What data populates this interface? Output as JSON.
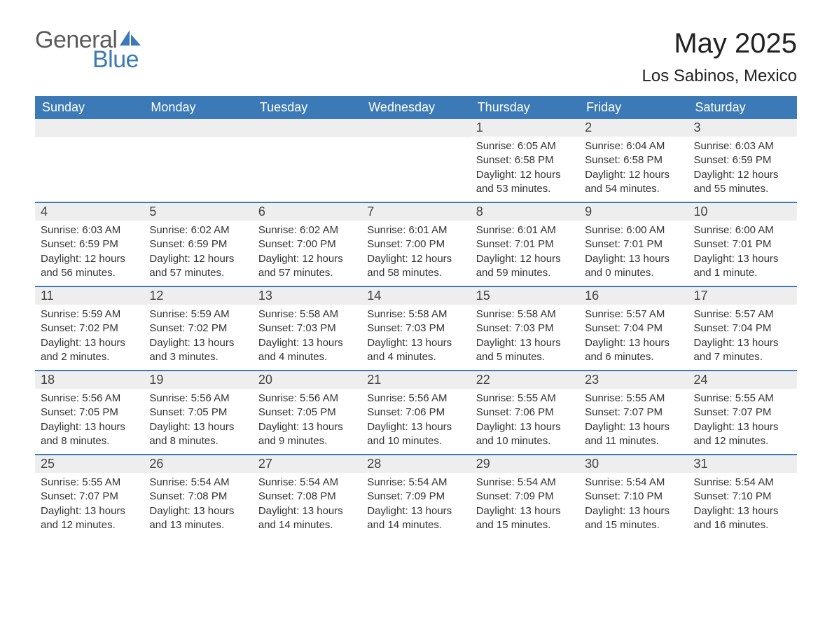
{
  "brand": {
    "word1": "General",
    "word2": "Blue",
    "word1_color": "#5a5a5a",
    "word2_color": "#3b79b7",
    "icon_color": "#3b79b7"
  },
  "header": {
    "month_title": "May 2025",
    "location": "Los Sabinos, Mexico"
  },
  "colors": {
    "header_bg": "#3b79b7",
    "header_text": "#ffffff",
    "daynum_bg": "#eeeeee",
    "week_border": "#3b79b7",
    "body_text": "#333333",
    "page_bg": "#ffffff"
  },
  "dow": [
    "Sunday",
    "Monday",
    "Tuesday",
    "Wednesday",
    "Thursday",
    "Friday",
    "Saturday"
  ],
  "weeks": [
    [
      null,
      null,
      null,
      null,
      {
        "n": "1",
        "sr": "Sunrise: 6:05 AM",
        "ss": "Sunset: 6:58 PM",
        "dl": "Daylight: 12 hours and 53 minutes."
      },
      {
        "n": "2",
        "sr": "Sunrise: 6:04 AM",
        "ss": "Sunset: 6:58 PM",
        "dl": "Daylight: 12 hours and 54 minutes."
      },
      {
        "n": "3",
        "sr": "Sunrise: 6:03 AM",
        "ss": "Sunset: 6:59 PM",
        "dl": "Daylight: 12 hours and 55 minutes."
      }
    ],
    [
      {
        "n": "4",
        "sr": "Sunrise: 6:03 AM",
        "ss": "Sunset: 6:59 PM",
        "dl": "Daylight: 12 hours and 56 minutes."
      },
      {
        "n": "5",
        "sr": "Sunrise: 6:02 AM",
        "ss": "Sunset: 6:59 PM",
        "dl": "Daylight: 12 hours and 57 minutes."
      },
      {
        "n": "6",
        "sr": "Sunrise: 6:02 AM",
        "ss": "Sunset: 7:00 PM",
        "dl": "Daylight: 12 hours and 57 minutes."
      },
      {
        "n": "7",
        "sr": "Sunrise: 6:01 AM",
        "ss": "Sunset: 7:00 PM",
        "dl": "Daylight: 12 hours and 58 minutes."
      },
      {
        "n": "8",
        "sr": "Sunrise: 6:01 AM",
        "ss": "Sunset: 7:01 PM",
        "dl": "Daylight: 12 hours and 59 minutes."
      },
      {
        "n": "9",
        "sr": "Sunrise: 6:00 AM",
        "ss": "Sunset: 7:01 PM",
        "dl": "Daylight: 13 hours and 0 minutes."
      },
      {
        "n": "10",
        "sr": "Sunrise: 6:00 AM",
        "ss": "Sunset: 7:01 PM",
        "dl": "Daylight: 13 hours and 1 minute."
      }
    ],
    [
      {
        "n": "11",
        "sr": "Sunrise: 5:59 AM",
        "ss": "Sunset: 7:02 PM",
        "dl": "Daylight: 13 hours and 2 minutes."
      },
      {
        "n": "12",
        "sr": "Sunrise: 5:59 AM",
        "ss": "Sunset: 7:02 PM",
        "dl": "Daylight: 13 hours and 3 minutes."
      },
      {
        "n": "13",
        "sr": "Sunrise: 5:58 AM",
        "ss": "Sunset: 7:03 PM",
        "dl": "Daylight: 13 hours and 4 minutes."
      },
      {
        "n": "14",
        "sr": "Sunrise: 5:58 AM",
        "ss": "Sunset: 7:03 PM",
        "dl": "Daylight: 13 hours and 4 minutes."
      },
      {
        "n": "15",
        "sr": "Sunrise: 5:58 AM",
        "ss": "Sunset: 7:03 PM",
        "dl": "Daylight: 13 hours and 5 minutes."
      },
      {
        "n": "16",
        "sr": "Sunrise: 5:57 AM",
        "ss": "Sunset: 7:04 PM",
        "dl": "Daylight: 13 hours and 6 minutes."
      },
      {
        "n": "17",
        "sr": "Sunrise: 5:57 AM",
        "ss": "Sunset: 7:04 PM",
        "dl": "Daylight: 13 hours and 7 minutes."
      }
    ],
    [
      {
        "n": "18",
        "sr": "Sunrise: 5:56 AM",
        "ss": "Sunset: 7:05 PM",
        "dl": "Daylight: 13 hours and 8 minutes."
      },
      {
        "n": "19",
        "sr": "Sunrise: 5:56 AM",
        "ss": "Sunset: 7:05 PM",
        "dl": "Daylight: 13 hours and 8 minutes."
      },
      {
        "n": "20",
        "sr": "Sunrise: 5:56 AM",
        "ss": "Sunset: 7:05 PM",
        "dl": "Daylight: 13 hours and 9 minutes."
      },
      {
        "n": "21",
        "sr": "Sunrise: 5:56 AM",
        "ss": "Sunset: 7:06 PM",
        "dl": "Daylight: 13 hours and 10 minutes."
      },
      {
        "n": "22",
        "sr": "Sunrise: 5:55 AM",
        "ss": "Sunset: 7:06 PM",
        "dl": "Daylight: 13 hours and 10 minutes."
      },
      {
        "n": "23",
        "sr": "Sunrise: 5:55 AM",
        "ss": "Sunset: 7:07 PM",
        "dl": "Daylight: 13 hours and 11 minutes."
      },
      {
        "n": "24",
        "sr": "Sunrise: 5:55 AM",
        "ss": "Sunset: 7:07 PM",
        "dl": "Daylight: 13 hours and 12 minutes."
      }
    ],
    [
      {
        "n": "25",
        "sr": "Sunrise: 5:55 AM",
        "ss": "Sunset: 7:07 PM",
        "dl": "Daylight: 13 hours and 12 minutes."
      },
      {
        "n": "26",
        "sr": "Sunrise: 5:54 AM",
        "ss": "Sunset: 7:08 PM",
        "dl": "Daylight: 13 hours and 13 minutes."
      },
      {
        "n": "27",
        "sr": "Sunrise: 5:54 AM",
        "ss": "Sunset: 7:08 PM",
        "dl": "Daylight: 13 hours and 14 minutes."
      },
      {
        "n": "28",
        "sr": "Sunrise: 5:54 AM",
        "ss": "Sunset: 7:09 PM",
        "dl": "Daylight: 13 hours and 14 minutes."
      },
      {
        "n": "29",
        "sr": "Sunrise: 5:54 AM",
        "ss": "Sunset: 7:09 PM",
        "dl": "Daylight: 13 hours and 15 minutes."
      },
      {
        "n": "30",
        "sr": "Sunrise: 5:54 AM",
        "ss": "Sunset: 7:10 PM",
        "dl": "Daylight: 13 hours and 15 minutes."
      },
      {
        "n": "31",
        "sr": "Sunrise: 5:54 AM",
        "ss": "Sunset: 7:10 PM",
        "dl": "Daylight: 13 hours and 16 minutes."
      }
    ]
  ]
}
